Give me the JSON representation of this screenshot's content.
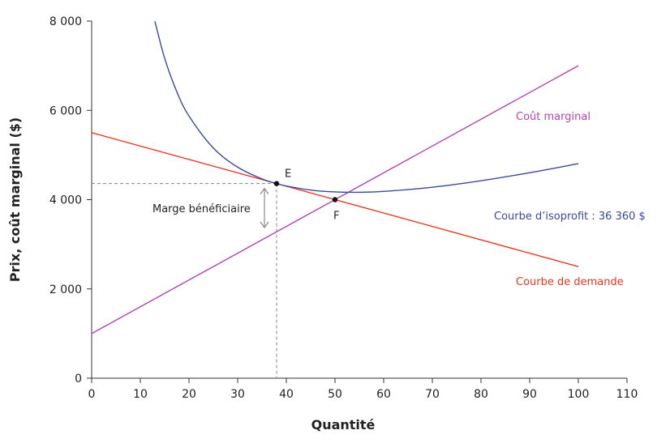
{
  "chart_data": {
    "type": "line",
    "xlabel": "Quantité",
    "ylabel": "Prix, coût marginal ($)",
    "xlim": [
      0,
      110
    ],
    "ylim": [
      0,
      8000
    ],
    "xticks": [
      0,
      10,
      20,
      30,
      40,
      50,
      60,
      70,
      80,
      90,
      100,
      110
    ],
    "yticks": [
      0,
      2000,
      4000,
      6000,
      8000
    ],
    "ytick_labels": [
      "0",
      "2 000",
      "4 000",
      "6 000",
      "8 000"
    ],
    "grid": false,
    "series": [
      {
        "name": "Courbe de demande",
        "color": "#e8351e",
        "x": [
          0,
          100
        ],
        "y": [
          5500,
          2500
        ]
      },
      {
        "name": "Coût marginal",
        "color": "#b144b0",
        "x": [
          0,
          100
        ],
        "y": [
          1000,
          7000
        ]
      },
      {
        "name": "Courbe d’isoprofit : 36 360 $",
        "color": "#3a4aa0",
        "x": [
          13,
          15,
          17.5,
          20,
          25,
          30,
          35,
          38,
          40,
          45,
          50,
          55,
          60,
          70,
          80,
          90,
          100
        ],
        "y": [
          7995,
          7166,
          6416,
          5872,
          5156,
          4728,
          4465,
          4360,
          4306,
          4215,
          4173,
          4165,
          4184,
          4278,
          4423,
          4603,
          4806
        ]
      }
    ],
    "points": [
      {
        "label": "E",
        "x": 38,
        "y": 4360
      },
      {
        "label": "F",
        "x": 50,
        "y": 4000
      }
    ],
    "annotations": [
      {
        "text": "Marge bénéficiaire",
        "color": "#222222"
      }
    ]
  }
}
